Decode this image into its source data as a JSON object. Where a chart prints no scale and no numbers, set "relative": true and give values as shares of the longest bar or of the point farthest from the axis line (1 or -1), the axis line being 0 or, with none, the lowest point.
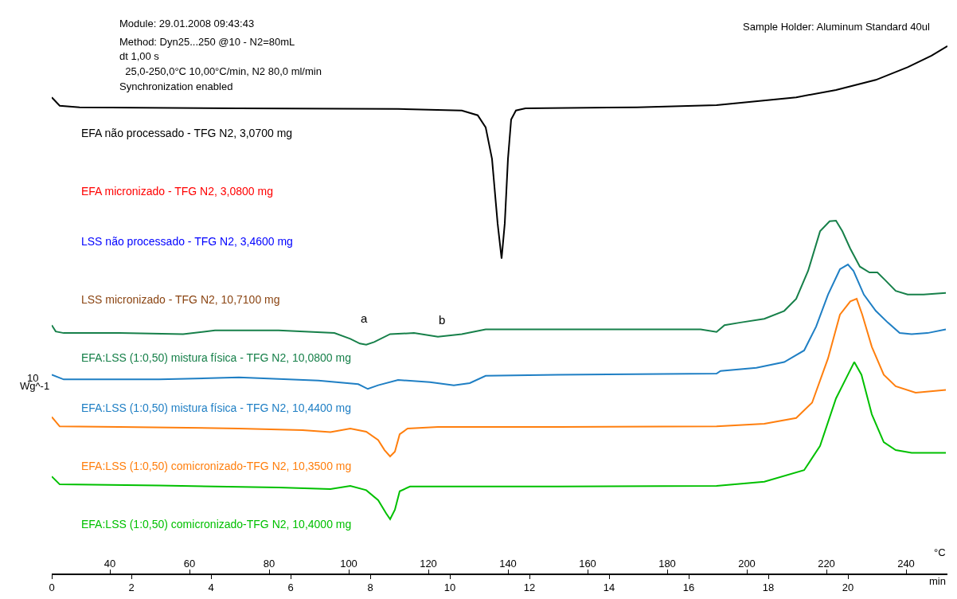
{
  "chart_data": {
    "type": "line",
    "relative": true,
    "legend": false,
    "marker": "none",
    "line_style": "solid",
    "xlabel": "min",
    "x2label": "°C",
    "xlim": [
      0,
      22.5
    ],
    "x2lim": [
      25.4,
      250.4
    ],
    "xticks": [
      0,
      2,
      4,
      6,
      8,
      10,
      12,
      14,
      16,
      18,
      20
    ],
    "x2ticks": [
      40,
      60,
      80,
      100,
      120,
      140,
      160,
      180,
      200,
      220,
      240
    ],
    "annotations": [
      "Module: 29.01.2008 09:43:43",
      "Method: Dyn25...250 @10 - N2=80mL",
      "dt 1,00 s",
      "  25,0-250,0°C 10,00°C/min, N2 80,0 ml/min",
      "Synchronization enabled",
      "Sample Holder: Aluminum Standard 40ul",
      "10",
      "Wg^-1",
      "a",
      "b"
    ],
    "series": [
      {
        "name": "EFA não processado - TFG N2, 3,0700 mg",
        "color": "#000000",
        "x": [
          0,
          0.2,
          0.7,
          4.7,
          8.7,
          10.3,
          10.7,
          10.9,
          11.06,
          11.2,
          11.3,
          11.38,
          11.46,
          11.54,
          11.66,
          11.9,
          14.7,
          16.7,
          18.7,
          19.7,
          20.7,
          21.5,
          22.1,
          22.5
        ],
        "values": [
          0.903,
          0.887,
          0.884,
          0.882,
          0.881,
          0.878,
          0.869,
          0.846,
          0.786,
          0.664,
          0.597,
          0.664,
          0.786,
          0.861,
          0.878,
          0.882,
          0.884,
          0.888,
          0.903,
          0.917,
          0.936,
          0.96,
          0.982,
          1
        ]
      },
      {
        "name": "EFA micronizado - TFG N2, 3,0800 mg",
        "color": "#ff0000"
      },
      {
        "name": "LSS não processado - TFG N2, 3,4600 mg",
        "color": "#0000ff"
      },
      {
        "name": "LSS micronizado - TFG N2, 10,7100 mg",
        "color": "#8b4513"
      },
      {
        "name": "EFA:LSS (1:0,50) mistura física - TFG N2, 10,0800 mg",
        "color": "#17804a",
        "x": [
          0,
          0.1,
          0.3,
          1.7,
          3.3,
          4.1,
          5.7,
          7.1,
          7.5,
          7.74,
          7.9,
          8.1,
          8.5,
          9.1,
          9.7,
          10.3,
          10.9,
          12.7,
          16.3,
          16.7,
          16.9,
          17.3,
          17.9,
          18.4,
          18.7,
          19.0,
          19.3,
          19.54,
          19.7,
          19.86,
          20.06,
          20.3,
          20.54,
          20.74,
          20.94,
          21.2,
          21.5,
          21.9,
          22.46
        ],
        "values": [
          0.471,
          0.459,
          0.456,
          0.456,
          0.454,
          0.461,
          0.461,
          0.456,
          0.445,
          0.436,
          0.434,
          0.439,
          0.454,
          0.456,
          0.449,
          0.454,
          0.463,
          0.463,
          0.463,
          0.458,
          0.471,
          0.476,
          0.483,
          0.498,
          0.521,
          0.574,
          0.649,
          0.668,
          0.669,
          0.649,
          0.616,
          0.582,
          0.571,
          0.571,
          0.556,
          0.536,
          0.529,
          0.529,
          0.532
        ]
      },
      {
        "name": "EFA:LSS (1:0,50) mistura física - TFG N2, 10,4400 mg",
        "color": "#1f7fc4",
        "x": [
          0,
          0.3,
          2.7,
          4.7,
          6.7,
          7.7,
          7.94,
          8.2,
          8.7,
          9.5,
          10.1,
          10.5,
          10.9,
          12.7,
          16.7,
          16.8,
          17.7,
          18.4,
          18.9,
          19.2,
          19.5,
          19.8,
          20.0,
          20.14,
          20.4,
          20.7,
          21.0,
          21.3,
          21.6,
          22.0,
          22.46
        ],
        "values": [
          0.377,
          0.368,
          0.368,
          0.372,
          0.366,
          0.359,
          0.35,
          0.357,
          0.367,
          0.363,
          0.357,
          0.361,
          0.375,
          0.377,
          0.379,
          0.384,
          0.39,
          0.401,
          0.423,
          0.468,
          0.529,
          0.577,
          0.586,
          0.574,
          0.529,
          0.498,
          0.476,
          0.456,
          0.454,
          0.456,
          0.463
        ]
      },
      {
        "name": "EFA:LSS (1:0,50) comicronizado-TFG N2, 10,3500 mg",
        "color": "#ff7f0e",
        "x": [
          0,
          0.2,
          1.7,
          4.7,
          6.3,
          7.0,
          7.5,
          7.9,
          8.2,
          8.36,
          8.5,
          8.62,
          8.74,
          8.94,
          9.7,
          12.7,
          16.7,
          17.9,
          18.7,
          19.1,
          19.5,
          19.8,
          20.06,
          20.22,
          20.36,
          20.6,
          20.9,
          21.2,
          21.7,
          22.46
        ],
        "values": [
          0.297,
          0.279,
          0.278,
          0.275,
          0.272,
          0.268,
          0.275,
          0.269,
          0.253,
          0.234,
          0.222,
          0.231,
          0.264,
          0.275,
          0.278,
          0.278,
          0.279,
          0.284,
          0.295,
          0.324,
          0.408,
          0.491,
          0.516,
          0.521,
          0.491,
          0.43,
          0.377,
          0.355,
          0.343,
          0.348
        ]
      },
      {
        "name": "EFA:LSS (1:0,50) comicronizado-TFG N2, 10,4000 mg",
        "color": "#00c000",
        "x": [
          0,
          0.2,
          2.7,
          5.7,
          7.0,
          7.5,
          7.9,
          8.2,
          8.4,
          8.5,
          8.62,
          8.74,
          9.0,
          12.7,
          16.7,
          17.9,
          18.9,
          19.3,
          19.7,
          20.0,
          20.16,
          20.34,
          20.6,
          20.9,
          21.2,
          21.6,
          22.46
        ],
        "values": [
          0.184,
          0.169,
          0.167,
          0.163,
          0.16,
          0.166,
          0.158,
          0.139,
          0.114,
          0.103,
          0.121,
          0.156,
          0.165,
          0.165,
          0.166,
          0.174,
          0.196,
          0.242,
          0.332,
          0.377,
          0.401,
          0.377,
          0.302,
          0.249,
          0.234,
          0.229,
          0.229
        ]
      }
    ]
  }
}
